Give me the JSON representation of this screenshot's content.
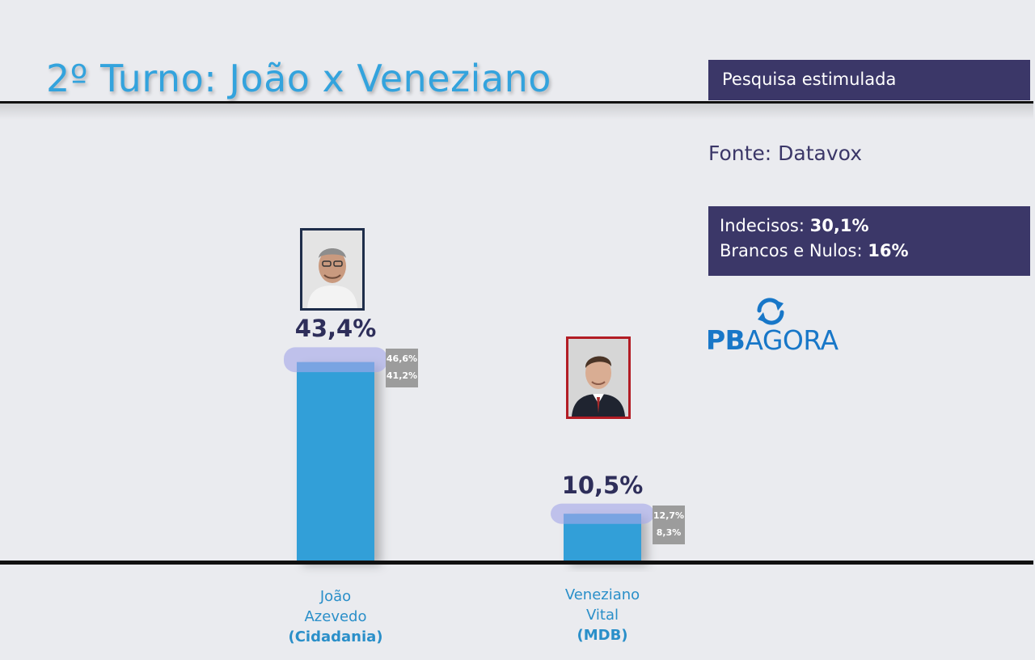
{
  "title": "2º Turno: João x Veneziano",
  "survey_type": "Pesquisa estimulada",
  "source": "Fonte: Datavox",
  "undecided": {
    "label": "Indecisos:",
    "value": "30,1%"
  },
  "blank_null": {
    "label": "Brancos e Nulos:",
    "value": "16%"
  },
  "logo": {
    "bold": "PB",
    "rest": "AGORA",
    "icon": "refresh-arrows-icon"
  },
  "colors": {
    "bar": "#339fd8",
    "range_band": "#a4a8e8",
    "box": "#3b3768",
    "title": "#33a3dd"
  },
  "chart_data": {
    "type": "bar",
    "title": "2º Turno: João x Veneziano",
    "ylim": [
      0,
      50
    ],
    "categories": [
      {
        "name_line1": "João",
        "name_line2": "Azevedo",
        "party": "(Cidadania)"
      },
      {
        "name_line1": "Veneziano",
        "name_line2": "Vital",
        "party": "(MDB)"
      }
    ],
    "values": [
      43.4,
      10.5
    ],
    "value_labels": [
      "43,4%",
      "10,5%"
    ],
    "ranges": [
      {
        "high": 46.6,
        "low": 41.2,
        "high_label": "46,6%",
        "low_label": "41,2%"
      },
      {
        "high": 12.7,
        "low": 8.3,
        "high_label": "12,7%",
        "low_label": "8,3%"
      }
    ]
  }
}
